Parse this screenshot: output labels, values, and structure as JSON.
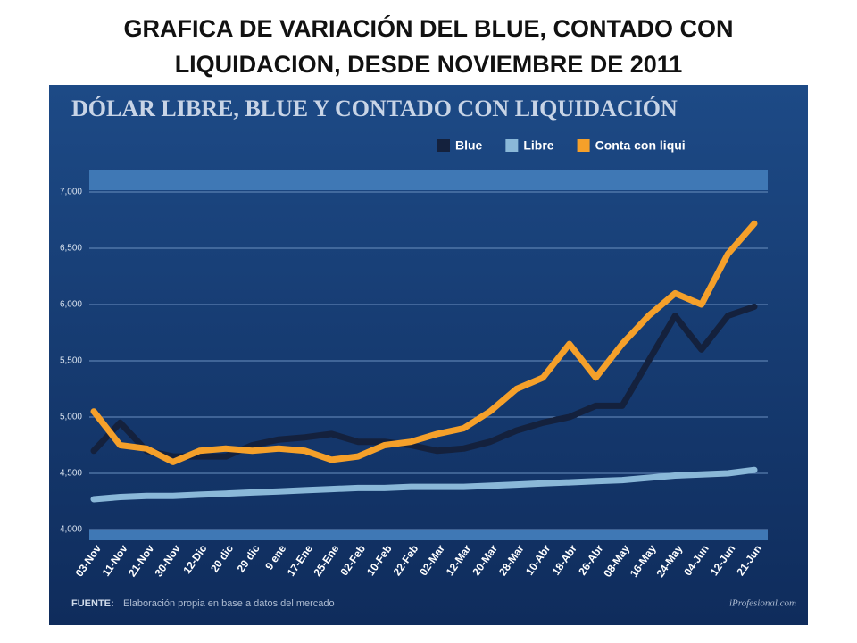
{
  "title": [
    "GRAFICA DE VARIACIÓN DEL BLUE, CONTADO CON",
    "LIQUIDACION, DESDE NOVIEMBRE DE 2011"
  ],
  "chart_data": {
    "type": "line",
    "title": "DÓLAR LIBRE, BLUE Y CONTADO CON LIQUIDACIÓN",
    "categories": [
      "03-Nov",
      "11-Nov",
      "21-Nov",
      "30-Nov",
      "12-Dic",
      "20 dic",
      "29 dic",
      "9 ene",
      "17-Ene",
      "25-Ene",
      "02-Feb",
      "10-Feb",
      "22-Feb",
      "02-Mar",
      "12-Mar",
      "20-Mar",
      "28-Mar",
      "10-Abr",
      "18-Abr",
      "26-Abr",
      "08-May",
      "16-May",
      "24-May",
      "04-Jun",
      "12-Jun",
      "21-Jun"
    ],
    "series": [
      {
        "name": "Blue",
        "color": "#14213d",
        "values": [
          4700,
          4950,
          4700,
          4650,
          4650,
          4650,
          4750,
          4800,
          4820,
          4850,
          4780,
          4780,
          4750,
          4700,
          4720,
          4780,
          4880,
          4950,
          5000,
          5100,
          5100,
          5500,
          5900,
          5600,
          5900,
          5980
        ]
      },
      {
        "name": "Libre",
        "color": "#8ab8d8",
        "values": [
          4270,
          4290,
          4300,
          4300,
          4310,
          4320,
          4330,
          4340,
          4350,
          4360,
          4370,
          4370,
          4380,
          4380,
          4380,
          4390,
          4400,
          4410,
          4420,
          4430,
          4440,
          4460,
          4480,
          4490,
          4500,
          4530
        ]
      },
      {
        "name": "Conta con liqui",
        "color": "#f5a02a",
        "values": [
          5050,
          4750,
          4720,
          4600,
          4700,
          4720,
          4700,
          4720,
          4700,
          4620,
          4650,
          4750,
          4780,
          4850,
          4900,
          5050,
          5250,
          5350,
          5650,
          5350,
          5650,
          5900,
          6100,
          6000,
          6450,
          6720
        ]
      }
    ],
    "ylim": [
      4000,
      7000
    ],
    "yticks": [
      {
        "value": 4000,
        "label": "4,000"
      },
      {
        "value": 4500,
        "label": "4,500"
      },
      {
        "value": 5000,
        "label": "5,000"
      },
      {
        "value": 5500,
        "label": "5,500"
      },
      {
        "value": 6000,
        "label": "6,000"
      },
      {
        "value": 6500,
        "label": "6,500"
      },
      {
        "value": 7000,
        "label": "7,000"
      }
    ],
    "grid": true,
    "source_label": "FUENTE:",
    "source": "Elaboración propia en base a datos del mercado",
    "credit": "iProfesional.com"
  }
}
